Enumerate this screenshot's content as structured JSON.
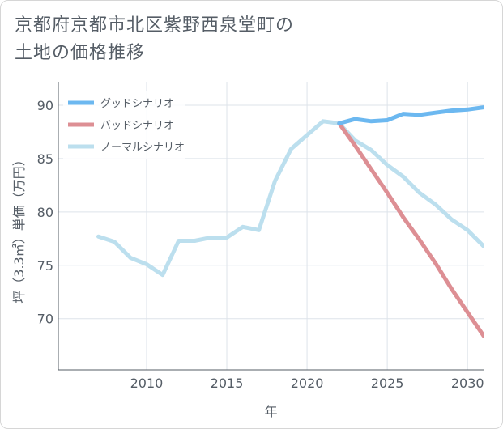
{
  "title": {
    "line1": "京都府京都市北区紫野西泉堂町の",
    "line2": "土地の価格推移"
  },
  "colors": {
    "good": "#6cb8f0",
    "bad": "#dd8f94",
    "normal": "#bcdfee",
    "grid": "#dde3ea",
    "axis": "#555d66"
  },
  "chart_data": {
    "type": "line",
    "title": "京都府京都市北区紫野西泉堂町の土地の価格推移",
    "xlabel": "年",
    "ylabel": "坪（3.3㎡）単価（万円）",
    "xlim": [
      2004.5,
      2031
    ],
    "ylim": [
      65.2,
      92.2
    ],
    "xticks": [
      2010,
      2015,
      2020,
      2025,
      2030
    ],
    "yticks": [
      70,
      75,
      80,
      85,
      90
    ],
    "xtick_labels": [
      "2010",
      "2015",
      "2020",
      "2025",
      "2030"
    ],
    "ytick_labels": [
      "70",
      "75",
      "80",
      "85",
      "90"
    ],
    "grid": true,
    "legend_position": "top-left",
    "series": [
      {
        "key": "good",
        "name": "グッドシナリオ",
        "x": [
          2022,
          2023,
          2024,
          2025,
          2026,
          2027,
          2028,
          2029,
          2030,
          2031
        ],
        "y": [
          88.3,
          88.7,
          88.5,
          88.6,
          89.2,
          89.1,
          89.3,
          89.5,
          89.6,
          89.8
        ]
      },
      {
        "key": "bad",
        "name": "バッドシナリオ",
        "x": [
          2022,
          2023,
          2024,
          2025,
          2026,
          2027,
          2028,
          2029,
          2030,
          2031
        ],
        "y": [
          88.3,
          86.2,
          84.0,
          81.8,
          79.5,
          77.4,
          75.2,
          72.8,
          70.6,
          68.4
        ]
      },
      {
        "key": "normal",
        "name": "ノーマルシナリオ",
        "x": [
          2007,
          2008,
          2009,
          2010,
          2011,
          2012,
          2013,
          2014,
          2015,
          2016,
          2017,
          2018,
          2019,
          2020,
          2021,
          2022,
          2023,
          2024,
          2025,
          2026,
          2027,
          2028,
          2029,
          2030,
          2031
        ],
        "y": [
          77.7,
          77.2,
          75.7,
          75.1,
          74.1,
          77.3,
          77.3,
          77.6,
          77.6,
          78.6,
          78.3,
          82.9,
          85.9,
          87.2,
          88.5,
          88.3,
          86.7,
          85.8,
          84.4,
          83.3,
          81.8,
          80.7,
          79.3,
          78.3,
          76.8
        ]
      }
    ]
  }
}
